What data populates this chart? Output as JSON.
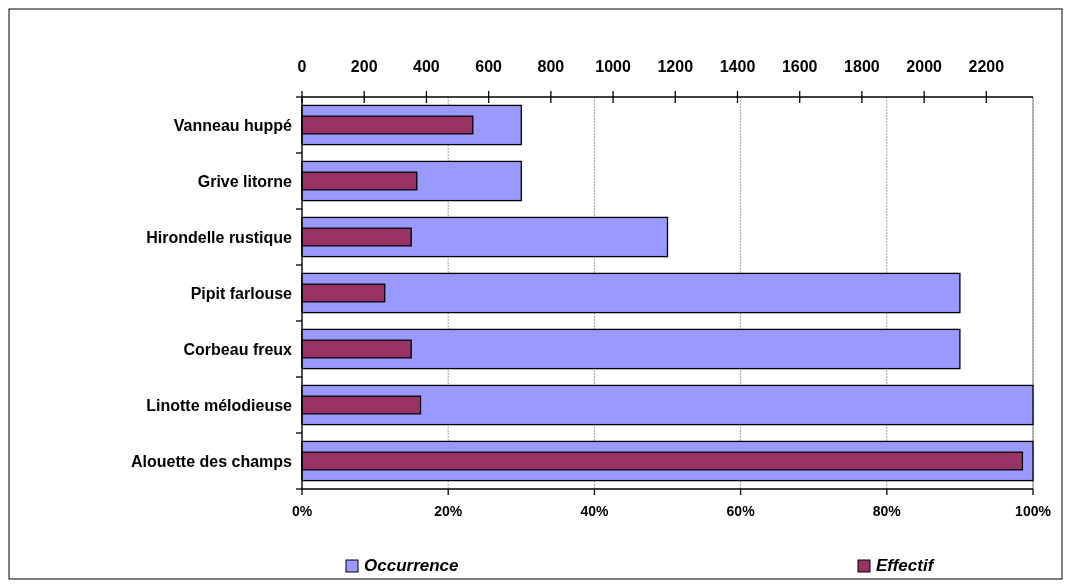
{
  "chart_data": {
    "type": "bar",
    "orientation": "horizontal",
    "categories": [
      "Vanneau huppé",
      "Grive litorne",
      "Hirondelle rustique",
      "Pipit farlouse",
      "Corbeau freux",
      "Linotte mélodieuse",
      "Alouette des champs"
    ],
    "series": [
      {
        "name": "Occurrence",
        "color": "#9999ff",
        "values": [
          30,
          30,
          50,
          90,
          90,
          100,
          100
        ]
      },
      {
        "name": "Effectif",
        "color": "#993366",
        "axis": "x2",
        "values": [
          549,
          369,
          351,
          266,
          351,
          381,
          2316
        ]
      }
    ],
    "xlim": [
      0,
      100
    ],
    "xticks": [
      {
        "value": 0,
        "label": "0%"
      },
      {
        "value": 20,
        "label": "20%"
      },
      {
        "value": 40,
        "label": "40%"
      },
      {
        "value": 60,
        "label": "60%"
      },
      {
        "value": 80,
        "label": "80%"
      },
      {
        "value": 100,
        "label": "100%"
      }
    ],
    "x2lim": [
      0,
      2350
    ],
    "x2ticks": [
      0,
      200,
      400,
      600,
      800,
      1000,
      1200,
      1400,
      1600,
      1800,
      2000,
      2200
    ],
    "grid": "x",
    "legend": "bottom"
  }
}
